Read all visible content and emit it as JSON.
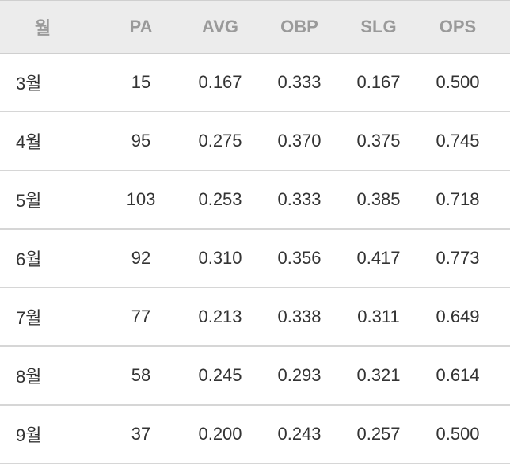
{
  "table": {
    "header": [
      "월",
      "PA",
      "AVG",
      "OBP",
      "SLG",
      "OPS"
    ],
    "rows": [
      [
        "3월",
        "15",
        "0.167",
        "0.333",
        "0.167",
        "0.500"
      ],
      [
        "4월",
        "95",
        "0.275",
        "0.370",
        "0.375",
        "0.745"
      ],
      [
        "5월",
        "103",
        "0.253",
        "0.333",
        "0.385",
        "0.718"
      ],
      [
        "6월",
        "92",
        "0.310",
        "0.356",
        "0.417",
        "0.773"
      ],
      [
        "7월",
        "77",
        "0.213",
        "0.338",
        "0.311",
        "0.649"
      ],
      [
        "8월",
        "58",
        "0.245",
        "0.293",
        "0.321",
        "0.614"
      ],
      [
        "9월",
        "37",
        "0.200",
        "0.243",
        "0.257",
        "0.500"
      ]
    ]
  }
}
